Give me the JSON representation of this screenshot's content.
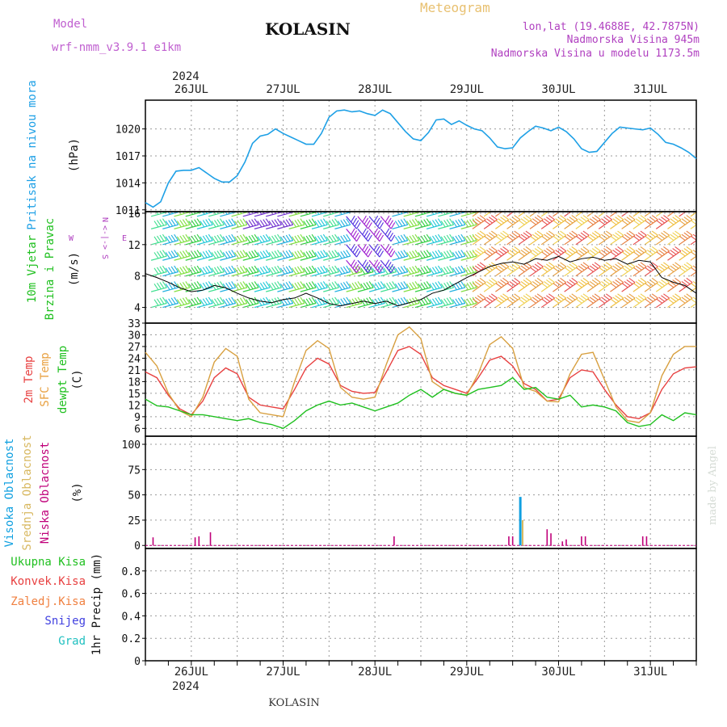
{
  "header": {
    "model_label": "Model",
    "model_name": "wrf-nmm_v3.9.1  e1km",
    "station": "KOLASIN",
    "meteogram": "Meteogram",
    "lonlat": "lon,lat (19.4688E, 42.7875N)",
    "elevation": "Nadmorska Visina 945m",
    "model_elevation": "Nadmorska Visina u modelu 1173.5m",
    "year_top": "2024",
    "year_bottom": "2024",
    "footer_station": "KOLASIN",
    "credit": "made by Angel"
  },
  "colors": {
    "pressure": "#1ea0e6",
    "temp2m": "#e84040",
    "sfc": "#d8a040",
    "dewpt": "#20c020",
    "cloud_high": "#10a0e0",
    "cloud_mid": "#d8b860",
    "cloud_low": "#c0007a",
    "wind_speed": "#000000"
  },
  "chart_data": [
    {
      "type": "line",
      "panel": "pressure",
      "ylabel_lines": [
        "Pritisak na nivou mora",
        "(hPa)"
      ],
      "ylim": [
        1010.8,
        1023.2
      ],
      "yticks": [
        1011,
        1014,
        1017,
        1020
      ],
      "xlim": [
        0,
        144
      ],
      "day_labels": [
        "26JUL",
        "27JUL",
        "28JUL",
        "29JUL",
        "30JUL",
        "31JUL"
      ],
      "day_hours": [
        12,
        36,
        60,
        84,
        108,
        132
      ],
      "x": [
        0,
        2,
        4,
        6,
        8,
        10,
        12,
        14,
        16,
        17,
        18,
        20,
        22,
        24,
        26,
        28,
        30,
        32,
        34,
        36,
        38,
        40,
        42,
        44,
        46,
        48,
        50,
        52,
        54,
        56,
        58,
        60,
        62,
        63,
        64,
        66,
        68,
        70,
        72,
        74,
        76,
        78,
        80,
        82,
        84,
        86,
        88,
        90,
        92,
        94,
        96,
        98,
        100,
        102,
        104,
        106,
        108,
        110,
        112,
        114,
        116,
        118,
        120,
        122,
        124,
        126,
        128,
        130,
        132,
        134,
        136,
        138,
        140,
        142,
        144
      ],
      "values": [
        1011.8,
        1011.3,
        1011.9,
        1014.0,
        1015.3,
        1015.4,
        1015.4,
        1015.7,
        1015.1,
        1014.8,
        1014.5,
        1014.1,
        1014.1,
        1014.8,
        1016.3,
        1018.4,
        1019.2,
        1019.4,
        1020.0,
        1019.5,
        1019.1,
        1018.7,
        1018.3,
        1018.3,
        1019.5,
        1021.3,
        1022.0,
        1022.1,
        1021.9,
        1022.0,
        1021.7,
        1021.5,
        1022.1,
        1021.9,
        1021.7,
        1020.7,
        1019.7,
        1018.9,
        1018.7,
        1019.6,
        1021.0,
        1021.1,
        1020.5,
        1020.9,
        1020.4,
        1020.0,
        1019.8,
        1019.0,
        1018.0,
        1017.8,
        1017.9,
        1019.0,
        1019.7,
        1020.3,
        1020.1,
        1019.8,
        1020.2,
        1019.7,
        1018.9,
        1017.8,
        1017.4,
        1017.5,
        1018.5,
        1019.5,
        1020.2,
        1020.1,
        1020.0,
        1019.9,
        1020.1,
        1019.4,
        1018.5,
        1018.3,
        1017.9,
        1017.4,
        1016.7
      ]
    },
    {
      "type": "line",
      "panel": "wind",
      "ylabel_lines": [
        "10m Vjetar",
        "Brzina i Pravac",
        "(m/s)"
      ],
      "compass_lines": [
        "N",
        "<-|->",
        "S",
        "W",
        "E"
      ],
      "ylim": [
        2,
        16.2
      ],
      "yticks": [
        4,
        8,
        12,
        16
      ],
      "x": [
        0,
        3,
        6,
        9,
        12,
        15,
        18,
        21,
        24,
        27,
        30,
        33,
        36,
        39,
        42,
        45,
        48,
        51,
        54,
        57,
        60,
        63,
        66,
        69,
        72,
        75,
        78,
        81,
        84,
        87,
        90,
        93,
        96,
        99,
        102,
        105,
        108,
        111,
        114,
        117,
        120,
        123,
        126,
        129,
        132,
        135,
        138,
        141,
        144
      ],
      "speed": [
        8.3,
        7.8,
        7.2,
        6.5,
        6.0,
        6.2,
        6.8,
        6.5,
        5.8,
        5.2,
        4.8,
        4.6,
        5.0,
        5.2,
        5.8,
        5.2,
        4.5,
        4.2,
        4.5,
        4.8,
        4.5,
        4.8,
        4.2,
        4.6,
        5.0,
        5.8,
        6.2,
        7.0,
        7.8,
        8.5,
        9.2,
        9.6,
        9.8,
        9.5,
        10.2,
        10.0,
        10.5,
        9.8,
        10.2,
        10.4,
        10.0,
        10.2,
        9.5,
        10.0,
        9.8,
        7.8,
        7.2,
        6.8,
        5.8
      ],
      "barbs_per_row": 48,
      "barb_rows": [
        4,
        6,
        8,
        10,
        12,
        14,
        15.6
      ]
    },
    {
      "type": "line",
      "panel": "temperature",
      "ylabel_lines": [
        "2m Temp",
        "SFC Temp",
        "dewpt Temp",
        "(C)"
      ],
      "ylim": [
        4,
        33
      ],
      "yticks": [
        6,
        9,
        12,
        15,
        18,
        21,
        24,
        27,
        30,
        33
      ],
      "x": [
        0,
        3,
        6,
        9,
        12,
        15,
        18,
        21,
        24,
        27,
        30,
        33,
        36,
        39,
        42,
        45,
        48,
        51,
        54,
        57,
        60,
        63,
        66,
        69,
        72,
        75,
        78,
        81,
        84,
        87,
        90,
        93,
        96,
        99,
        102,
        105,
        108,
        111,
        114,
        117,
        120,
        123,
        126,
        129,
        132,
        135,
        138,
        141,
        144
      ],
      "series": [
        {
          "name": "2m Temp",
          "values": [
            20.5,
            19.0,
            14.5,
            11.0,
            9.5,
            13.0,
            19.0,
            21.5,
            20.0,
            14.0,
            12.0,
            11.5,
            11.0,
            16.0,
            21.5,
            24.0,
            22.5,
            17.0,
            15.5,
            15.0,
            15.2,
            20.5,
            26.0,
            27.0,
            25.0,
            19.0,
            17.0,
            16.0,
            15.0,
            19.0,
            23.5,
            24.5,
            22.0,
            17.5,
            16.0,
            13.0,
            13.5,
            19.0,
            21.0,
            20.5,
            16.0,
            12.0,
            9.0,
            8.5,
            10.0,
            16.0,
            20.0,
            21.5,
            21.8
          ]
        },
        {
          "name": "SFC Temp",
          "values": [
            25.5,
            22.0,
            15.0,
            10.5,
            9.0,
            14.0,
            23.0,
            26.5,
            24.5,
            13.5,
            10.0,
            9.5,
            9.0,
            18.0,
            26.0,
            28.5,
            26.5,
            16.5,
            14.0,
            13.5,
            14.0,
            22.5,
            30.0,
            32.0,
            29.0,
            18.0,
            16.0,
            15.0,
            14.5,
            20.0,
            27.5,
            29.5,
            26.5,
            16.5,
            15.5,
            13.0,
            12.8,
            20.0,
            25.0,
            25.5,
            18.5,
            11.5,
            8.0,
            7.5,
            10.0,
            19.5,
            25.0,
            27.0,
            27.0
          ]
        },
        {
          "name": "dewpt Temp",
          "values": [
            13.5,
            11.8,
            11.5,
            10.5,
            9.5,
            9.5,
            9.0,
            8.5,
            8.0,
            8.5,
            7.5,
            7.0,
            6.0,
            8.0,
            10.5,
            12.0,
            13.0,
            12.0,
            12.5,
            11.5,
            10.5,
            11.5,
            12.5,
            14.5,
            16.0,
            14.0,
            16.0,
            15.0,
            14.5,
            16.0,
            16.5,
            17.0,
            19.0,
            16.0,
            16.5,
            14.0,
            13.5,
            14.5,
            11.5,
            12.0,
            11.5,
            10.5,
            7.5,
            6.5,
            7.0,
            9.5,
            8.0,
            10.0,
            9.5
          ]
        }
      ]
    },
    {
      "type": "bar",
      "panel": "cloud",
      "ylabel_lines": [
        "Visoka Oblacnost",
        "Srednja Oblacnost",
        "Niska Oblacnost",
        "(%)"
      ],
      "ylim": [
        -3,
        108
      ],
      "yticks": [
        0,
        25,
        50,
        75,
        100
      ],
      "series": [
        {
          "name": "Visoka Oblacnost",
          "x": [
            98
          ],
          "values": [
            48
          ]
        },
        {
          "name": "Srednja Oblacnost",
          "x": [
            98.6
          ],
          "values": [
            25
          ]
        },
        {
          "name": "Niska Oblacnost",
          "x": [
            2,
            13,
            14,
            17,
            65,
            95,
            96,
            105,
            106,
            109,
            110,
            114,
            115,
            130,
            131
          ],
          "values": [
            8,
            8,
            9,
            13,
            9,
            9,
            9,
            16,
            12,
            4,
            6,
            9,
            9,
            9,
            9
          ]
        }
      ]
    },
    {
      "type": "line",
      "panel": "precipitation",
      "ylabel_lines": [
        "1hr Precip (mm)"
      ],
      "legend": [
        "Ukupna Kisa",
        "Konvek.Kisa",
        "Zaledj.Kisa",
        "Snijeg",
        "Grad"
      ],
      "legend_colors": [
        "#20c020",
        "#e84040",
        "#f08040",
        "#4040e0",
        "#20c0c0"
      ],
      "ylim": [
        0,
        1
      ],
      "yticks": [
        0,
        0.2,
        0.4,
        0.6,
        0.8
      ],
      "ytick_labels": [
        "0",
        "0.2",
        "0.4",
        "0.6",
        "0.8"
      ],
      "x": [
        0,
        144
      ],
      "values": [
        0,
        0
      ]
    }
  ]
}
